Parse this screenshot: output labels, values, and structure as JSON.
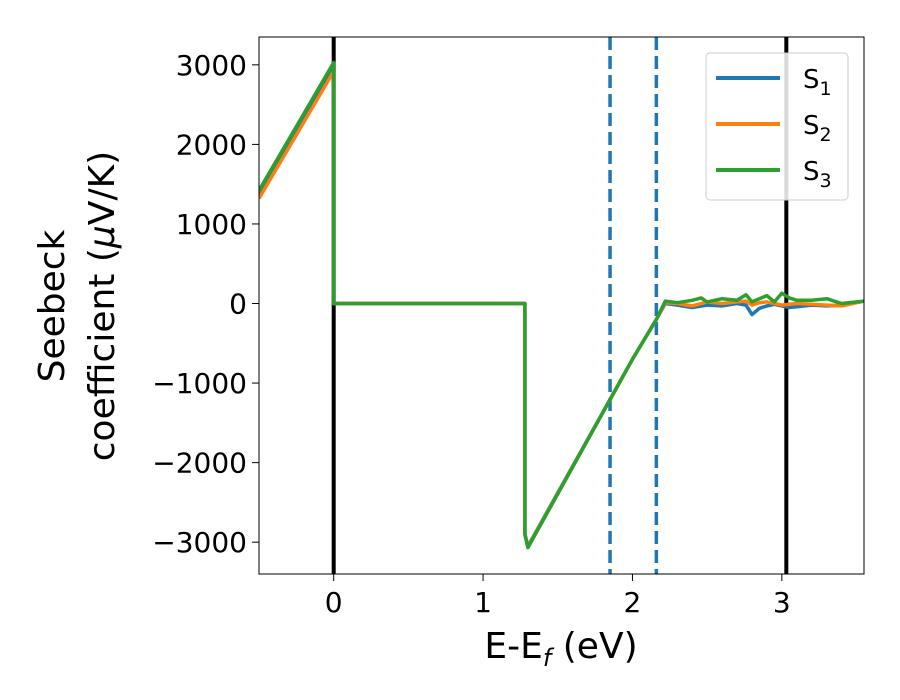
{
  "chart_data": {
    "type": "line",
    "xlabel": {
      "main": "E-E",
      "sub": "f",
      "rest": " (eV)"
    },
    "ylabel": {
      "line1": "Seebeck",
      "line2_text": "coefficient  (",
      "line2_mu": "μ",
      "line2_rest": "V/K)"
    },
    "xlim": [
      -0.5,
      3.55
    ],
    "ylim": [
      -3400,
      3350
    ],
    "x_ticks": [
      0,
      1,
      2,
      3
    ],
    "x_tick_labels": [
      "0",
      "1",
      "2",
      "3"
    ],
    "y_ticks": [
      -3000,
      -2000,
      -1000,
      0,
      1000,
      2000,
      3000
    ],
    "y_tick_labels": [
      "−3000",
      "−2000",
      "−1000",
      "0",
      "1000",
      "2000",
      "3000"
    ],
    "grid": false,
    "legend_position": "top-right",
    "vertical_lines": [
      {
        "x": 0.0,
        "color": "#000000",
        "style": "solid"
      },
      {
        "x": 3.03,
        "color": "#000000",
        "style": "solid"
      },
      {
        "x": 1.85,
        "color": "#1f77b4",
        "style": "dashed"
      },
      {
        "x": 2.16,
        "color": "#1f77b4",
        "style": "dashed"
      }
    ],
    "series": [
      {
        "name": "S",
        "subscript": "1",
        "color": "#1f77b4",
        "x": [
          -0.5,
          0.0,
          0.0,
          1.28,
          1.28,
          1.3,
          2.0,
          2.16,
          2.22,
          2.3,
          2.4,
          2.5,
          2.6,
          2.7,
          2.76,
          2.8,
          2.85,
          2.9,
          2.95,
          3.0,
          3.05,
          3.1,
          3.2,
          3.3,
          3.4,
          3.55
        ],
        "y": [
          1350,
          2950,
          0,
          0,
          -2900,
          -3050,
          -700,
          -200,
          0,
          -20,
          -50,
          -20,
          -30,
          0,
          -20,
          -140,
          -60,
          -30,
          -10,
          -30,
          -50,
          -40,
          -20,
          -30,
          -20,
          30
        ]
      },
      {
        "name": "S",
        "subscript": "2",
        "color": "#ff7f0e",
        "x": [
          -0.5,
          0.0,
          0.0,
          1.28,
          1.28,
          1.3,
          2.0,
          2.16,
          2.22,
          2.3,
          2.4,
          2.5,
          2.6,
          2.7,
          2.76,
          2.8,
          2.85,
          2.9,
          2.95,
          3.0,
          3.05,
          3.1,
          3.2,
          3.3,
          3.4,
          3.55
        ],
        "y": [
          1320,
          2920,
          0,
          0,
          -2900,
          -3060,
          -700,
          -200,
          10,
          0,
          -30,
          20,
          0,
          20,
          30,
          -20,
          10,
          20,
          0,
          -20,
          -10,
          0,
          -10,
          -20,
          -30,
          30
        ]
      },
      {
        "name": "S",
        "subscript": "3",
        "color": "#2ca02c",
        "x": [
          -0.5,
          0.0,
          0.0,
          1.28,
          1.28,
          1.3,
          2.0,
          2.16,
          2.22,
          2.3,
          2.4,
          2.46,
          2.5,
          2.6,
          2.7,
          2.76,
          2.8,
          2.85,
          2.9,
          2.95,
          3.0,
          3.05,
          3.1,
          3.2,
          3.3,
          3.4,
          3.55
        ],
        "y": [
          1420,
          3030,
          0,
          0,
          -2900,
          -3070,
          -700,
          -200,
          30,
          10,
          40,
          70,
          20,
          60,
          40,
          110,
          20,
          60,
          100,
          20,
          130,
          70,
          40,
          40,
          60,
          0,
          30
        ]
      }
    ]
  }
}
